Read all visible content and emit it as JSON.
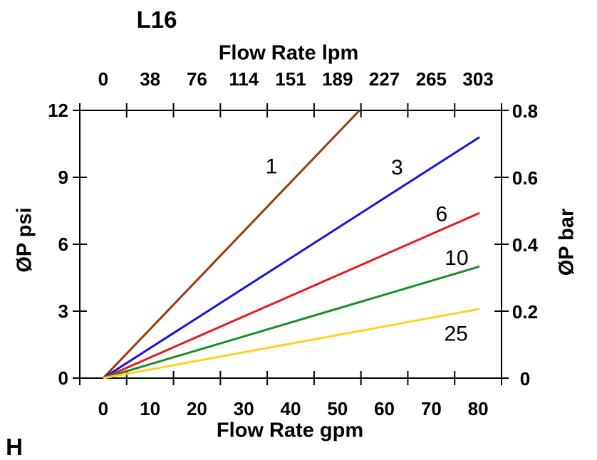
{
  "title": "L16",
  "page_marker": "H",
  "chart_data": {
    "type": "line",
    "title": "L16",
    "grid": false,
    "legend": "inline-labels",
    "axis_color": "#000000",
    "x_bottom": {
      "label": "Flow Rate gpm",
      "ticklabels": [
        "0",
        "10",
        "20",
        "30",
        "40",
        "50",
        "60",
        "70",
        "80"
      ],
      "range": [
        0,
        80
      ],
      "tick_marks": 10,
      "labels_between_ticks": true
    },
    "x_top": {
      "label": "Flow Rate lpm",
      "ticklabels": [
        "0",
        "38",
        "76",
        "114",
        "151",
        "189",
        "227",
        "265",
        "303"
      ],
      "range": [
        0,
        303
      ],
      "tick_marks": 10,
      "labels_between_ticks": true
    },
    "y_left": {
      "label": "ØP psi",
      "ticklabels": [
        "12",
        "9",
        "6",
        "3",
        "0"
      ],
      "range": [
        0,
        12
      ]
    },
    "y_right": {
      "label": "ØP bar",
      "ticklabels": [
        "0.8",
        "0.6",
        "0.4",
        "0.2",
        "0"
      ],
      "range": [
        0,
        0.8
      ]
    },
    "series": [
      {
        "name": "1",
        "color": "#9b3a10",
        "points": [
          [
            0,
            0
          ],
          [
            54.7,
            12.0
          ]
        ],
        "label_at": [
          35.9,
          9.5
        ]
      },
      {
        "name": "3",
        "color": "#1414dd",
        "points": [
          [
            0,
            0
          ],
          [
            80.3,
            10.8
          ]
        ],
        "label_at": [
          62.7,
          9.45
        ]
      },
      {
        "name": "6",
        "color": "#e51a1e",
        "points": [
          [
            0,
            0
          ],
          [
            80.3,
            7.4
          ]
        ],
        "label_at": [
          72.2,
          7.35
        ]
      },
      {
        "name": "10",
        "color": "#1e8c28",
        "points": [
          [
            0,
            0
          ],
          [
            80.3,
            5.0
          ]
        ],
        "label_at": [
          75.4,
          5.4
        ]
      },
      {
        "name": "25",
        "color": "#ffd21e",
        "points": [
          [
            0,
            0
          ],
          [
            80.3,
            3.1
          ]
        ],
        "label_at": [
          75.3,
          2.0
        ]
      }
    ]
  }
}
